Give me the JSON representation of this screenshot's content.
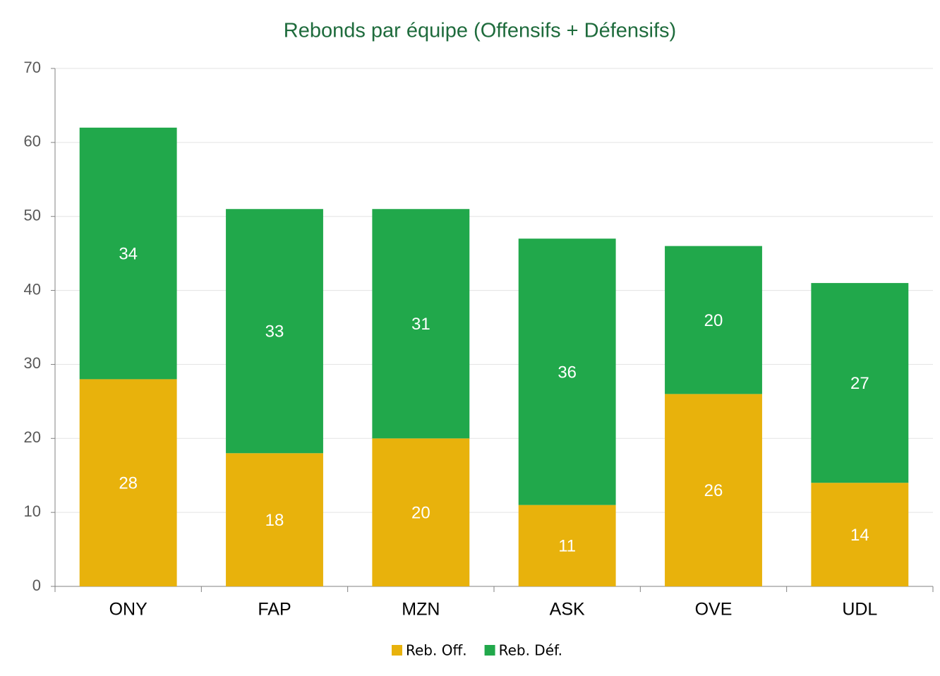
{
  "chart_data": {
    "type": "stacked_bar",
    "title": "Rebonds par équipe (Offensifs + Défensifs)",
    "categories": [
      "ONY",
      "FAP",
      "MZN",
      "ASK",
      "OVE",
      "UDL"
    ],
    "series": [
      {
        "name": "Reb. Off.",
        "color": "#e8b20c",
        "values": [
          28,
          18,
          20,
          11,
          26,
          14
        ]
      },
      {
        "name": "Reb. Déf.",
        "color": "#21a84b",
        "values": [
          34,
          33,
          31,
          36,
          20,
          27
        ]
      }
    ],
    "ylim": [
      0,
      70
    ],
    "yticks": [
      0,
      10,
      20,
      30,
      40,
      50,
      60,
      70
    ],
    "grid": true,
    "legend": "bottom"
  }
}
